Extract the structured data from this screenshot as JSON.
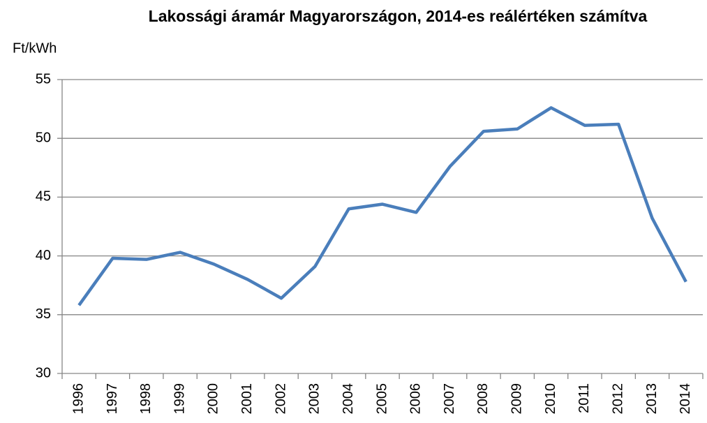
{
  "chart_data": {
    "type": "line",
    "title": "Lakossági áramár Magyarországon, 2014-es reálértéken számítva",
    "y_label": "Ft/kWh",
    "categories": [
      "1996",
      "1997",
      "1998",
      "1999",
      "2000",
      "2001",
      "2002",
      "2003",
      "2004",
      "2005",
      "2006",
      "2007",
      "2008",
      "2009",
      "2010",
      "2011",
      "2012",
      "2013",
      "2014"
    ],
    "series": [
      {
        "name": "Lakossági áramár",
        "color": "#4a7ebb",
        "values": [
          35.8,
          39.8,
          39.7,
          40.3,
          39.3,
          38.0,
          36.4,
          39.1,
          44.0,
          44.4,
          43.7,
          47.6,
          50.6,
          50.8,
          52.6,
          51.1,
          51.2,
          43.2,
          37.8
        ]
      }
    ],
    "ylim": [
      30,
      55
    ],
    "yticks": [
      30,
      35,
      40,
      45,
      50,
      55
    ],
    "grid": true
  }
}
